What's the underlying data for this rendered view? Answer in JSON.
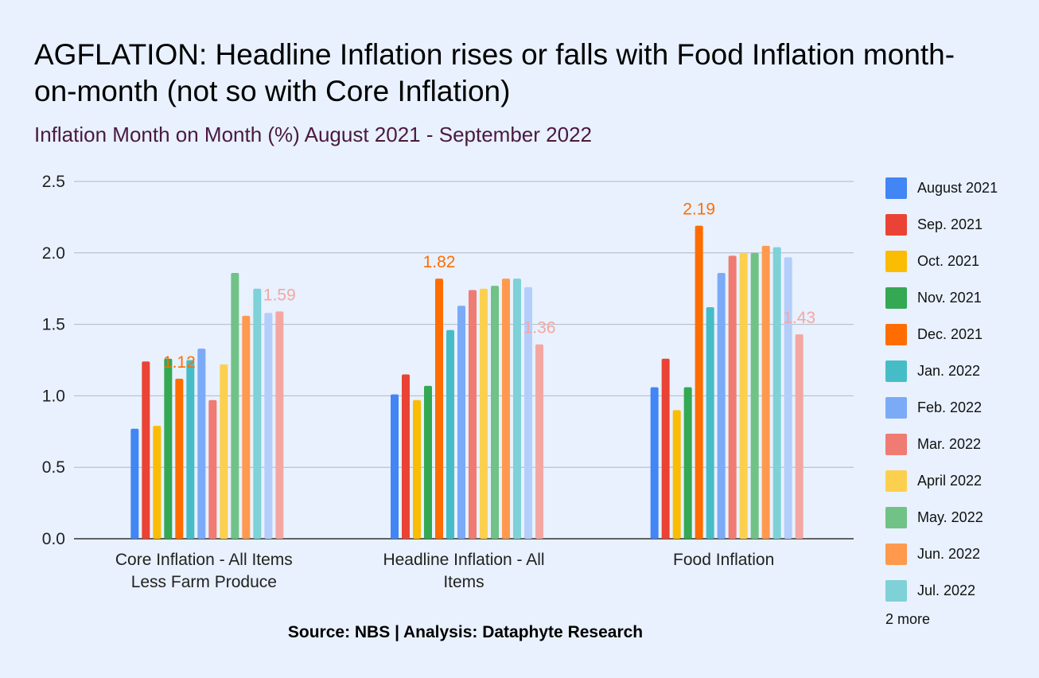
{
  "chart_data": {
    "type": "bar",
    "title": "AGFLATION: Headline Inflation rises or falls with Food Inflation month-on-month (not so with Core Inflation)",
    "subtitle": "Inflation Month on Month (%) August 2021 - September 2022",
    "source": "Source: NBS | Analysis: Dataphyte Research",
    "categories": [
      "Core Inflation - All Items Less Farm Produce",
      "Headline Inflation - All Items",
      "Food Inflation"
    ],
    "ylim": [
      0,
      2.5
    ],
    "yticks": [
      "0.0",
      "0.5",
      "1.0",
      "1.5",
      "2.0",
      "2.5"
    ],
    "grid": true,
    "legend_position": "right",
    "legend_more": "2 more",
    "series": [
      {
        "name": "August 2021",
        "color": "#4285f4",
        "values": [
          0.77,
          1.01,
          1.06
        ]
      },
      {
        "name": "Sep. 2021",
        "color": "#ea4335",
        "values": [
          1.24,
          1.15,
          1.26
        ]
      },
      {
        "name": "Oct. 2021",
        "color": "#fbbc04",
        "values": [
          0.79,
          0.97,
          0.9
        ]
      },
      {
        "name": "Nov. 2021",
        "color": "#34a853",
        "values": [
          1.26,
          1.07,
          1.06
        ]
      },
      {
        "name": "Dec. 2021",
        "color": "#ff6d01",
        "values": [
          1.12,
          1.82,
          2.19
        ]
      },
      {
        "name": "Jan. 2022",
        "color": "#46bdc6",
        "values": [
          1.25,
          1.46,
          1.62
        ]
      },
      {
        "name": "Feb. 2022",
        "color": "#7baaf7",
        "values": [
          1.33,
          1.63,
          1.86
        ]
      },
      {
        "name": "Mar. 2022",
        "color": "#f07b72",
        "values": [
          0.97,
          1.74,
          1.98
        ]
      },
      {
        "name": "April 2022",
        "color": "#fcd04f",
        "values": [
          1.22,
          1.75,
          2.0
        ]
      },
      {
        "name": "May. 2022",
        "color": "#71c287",
        "values": [
          1.86,
          1.77,
          2.0
        ]
      },
      {
        "name": "Jun. 2022",
        "color": "#ff994d",
        "values": [
          1.56,
          1.82,
          2.05
        ]
      },
      {
        "name": "Jul. 2022",
        "color": "#7ed1d7",
        "values": [
          1.75,
          1.82,
          2.04
        ]
      },
      {
        "name": "",
        "color": "#b3cefb",
        "values": [
          1.58,
          1.76,
          1.97
        ]
      },
      {
        "name": "",
        "color": "#f4a7a2",
        "values": [
          1.59,
          1.36,
          1.43
        ]
      }
    ],
    "data_labels": [
      {
        "series_index": 4,
        "category_index": 0,
        "text": "1.12",
        "color": "#ff6d01"
      },
      {
        "series_index": 4,
        "category_index": 1,
        "text": "1.82",
        "color": "#ff6d01"
      },
      {
        "series_index": 4,
        "category_index": 2,
        "text": "2.19",
        "color": "#ff6d01"
      },
      {
        "series_index": 13,
        "category_index": 0,
        "text": "1.59",
        "color": "#f4a7a2"
      },
      {
        "series_index": 13,
        "category_index": 1,
        "text": "1.36",
        "color": "#f4a7a2"
      },
      {
        "series_index": 13,
        "category_index": 2,
        "text": "1.43",
        "color": "#f4a7a2"
      }
    ]
  }
}
